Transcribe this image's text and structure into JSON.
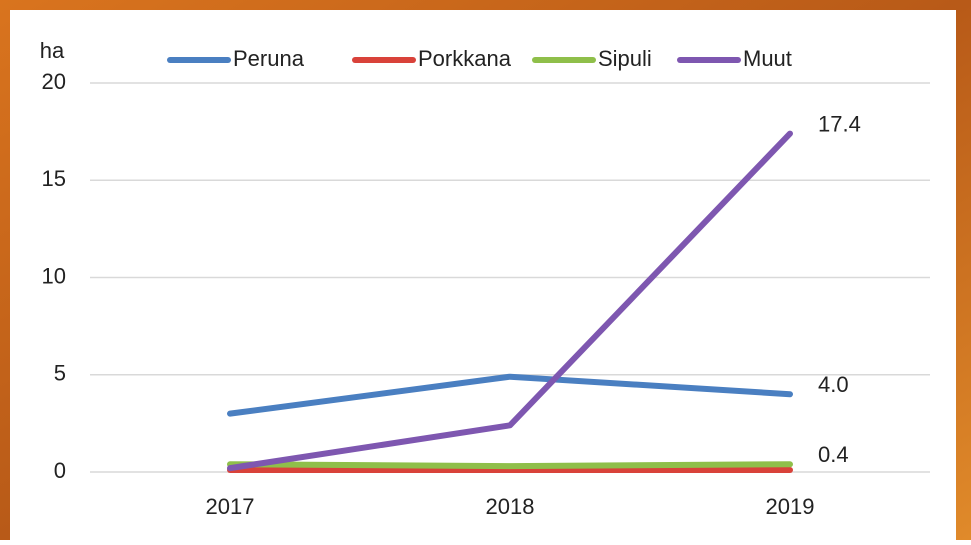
{
  "chart_data": {
    "type": "line",
    "y_label": "ha",
    "categories": [
      "2017",
      "2018",
      "2019"
    ],
    "series": [
      {
        "name": "Peruna",
        "color": "#4a7fc1",
        "values": [
          3.0,
          4.9,
          4.0
        ],
        "value_labels": [
          null,
          null,
          "4.0"
        ]
      },
      {
        "name": "Porkkana",
        "color": "#d9423a",
        "values": [
          0.1,
          0.1,
          0.1
        ]
      },
      {
        "name": "Sipuli",
        "color": "#8fbf4a",
        "values": [
          0.4,
          0.3,
          0.4
        ],
        "value_labels": [
          null,
          null,
          "0.4"
        ]
      },
      {
        "name": "Muut",
        "color": "#7e57b0",
        "values": [
          0.2,
          2.4,
          17.4
        ],
        "value_labels": [
          null,
          null,
          "17.4"
        ]
      }
    ],
    "ylim": [
      0,
      20
    ],
    "yticks": [
      0,
      5,
      10,
      15,
      20
    ],
    "grid": true
  }
}
